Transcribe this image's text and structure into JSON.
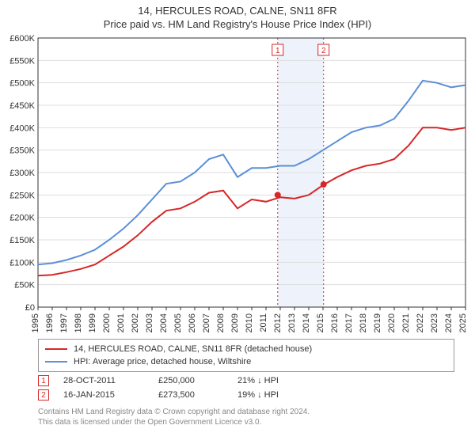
{
  "title_line1": "14, HERCULES ROAD, CALNE, SN11 8FR",
  "title_line2": "Price paid vs. HM Land Registry's House Price Index (HPI)",
  "chart": {
    "type": "line",
    "background_color": "#ffffff",
    "grid_color": "#dddddd",
    "axis_color": "#333333",
    "band_fill": "#eef3fb",
    "ylim_min": 0,
    "ylim_max": 600000,
    "ytick_step": 50000,
    "ytick_prefix": "£",
    "ytick_suffix": "K",
    "years": [
      1995,
      1996,
      1997,
      1998,
      1999,
      2000,
      2001,
      2002,
      2003,
      2004,
      2005,
      2006,
      2007,
      2008,
      2009,
      2010,
      2011,
      2012,
      2013,
      2014,
      2015,
      2016,
      2017,
      2018,
      2019,
      2020,
      2021,
      2022,
      2023,
      2024,
      2025
    ],
    "series": [
      {
        "name": "subject",
        "color": "#d62728",
        "width": 2,
        "values": [
          70000,
          72000,
          78000,
          85000,
          95000,
          115000,
          135000,
          160000,
          190000,
          215000,
          220000,
          235000,
          255000,
          260000,
          220000,
          240000,
          235000,
          245000,
          242000,
          250000,
          272000,
          290000,
          305000,
          315000,
          320000,
          330000,
          360000,
          400000,
          400000,
          395000,
          400000
        ]
      },
      {
        "name": "hpi",
        "color": "#5b8fd6",
        "width": 2,
        "values": [
          95000,
          98000,
          105000,
          115000,
          128000,
          150000,
          175000,
          205000,
          240000,
          275000,
          280000,
          300000,
          330000,
          340000,
          290000,
          310000,
          310000,
          315000,
          315000,
          330000,
          350000,
          370000,
          390000,
          400000,
          405000,
          420000,
          460000,
          505000,
          500000,
          490000,
          495000
        ]
      }
    ],
    "sale_markers": [
      {
        "label": "1",
        "year_frac": 2011.82,
        "value": 250000,
        "line_color": "#d62728",
        "box_border": "#d62728",
        "box_text": "#d62728"
      },
      {
        "label": "2",
        "year_frac": 2015.04,
        "value": 273500,
        "line_color": "#d62728",
        "box_border": "#d62728",
        "box_text": "#d62728"
      }
    ],
    "shaded_band": {
      "from_year_frac": 2011.82,
      "to_year_frac": 2015.04
    }
  },
  "legend": {
    "items": [
      {
        "color": "#d62728",
        "label": "14, HERCULES ROAD, CALNE, SN11 8FR (detached house)"
      },
      {
        "color": "#5b8fd6",
        "label": "HPI: Average price, detached house, Wiltshire"
      }
    ]
  },
  "sales": [
    {
      "label": "1",
      "color": "#d62728",
      "date": "28-OCT-2011",
      "price": "£250,000",
      "pct": "21% ↓ HPI"
    },
    {
      "label": "2",
      "color": "#d62728",
      "date": "16-JAN-2015",
      "price": "£273,500",
      "pct": "19% ↓ HPI"
    }
  ],
  "footer": {
    "line1": "Contains HM Land Registry data © Crown copyright and database right 2024.",
    "line2": "This data is licensed under the Open Government Licence v3.0."
  }
}
